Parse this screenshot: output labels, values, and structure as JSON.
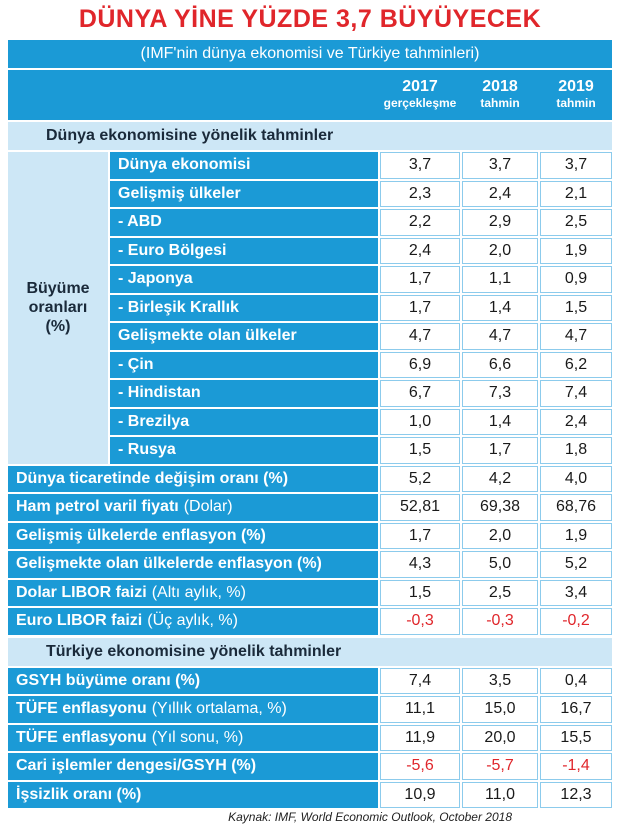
{
  "title": "DÜNYA YİNE YÜZDE 3,7 BÜYÜYECEK",
  "subtitle": "(IMF'nin dünya ekonomisi ve Türkiye tahminleri)",
  "columns": [
    {
      "year": "2017",
      "note": "gerçekleşme"
    },
    {
      "year": "2018",
      "note": "tahmin"
    },
    {
      "year": "2019",
      "note": "tahmin"
    }
  ],
  "sections": [
    {
      "heading": "Dünya ekonomisine yönelik tahminler",
      "group_label": [
        "Büyüme",
        "oranları",
        "(%)"
      ],
      "group_rows": [
        {
          "label": "Dünya ekonomisi",
          "values": [
            "3,7",
            "3,7",
            "3,7"
          ]
        },
        {
          "label": "Gelişmiş ülkeler",
          "values": [
            "2,3",
            "2,4",
            "2,1"
          ]
        },
        {
          "label": "- ABD",
          "values": [
            "2,2",
            "2,9",
            "2,5"
          ]
        },
        {
          "label": "- Euro Bölgesi",
          "values": [
            "2,4",
            "2,0",
            "1,9"
          ]
        },
        {
          "label": "- Japonya",
          "values": [
            "1,7",
            "1,1",
            "0,9"
          ]
        },
        {
          "label": "- Birleşik Krallık",
          "values": [
            "1,7",
            "1,4",
            "1,5"
          ]
        },
        {
          "label": "Gelişmekte olan ülkeler",
          "values": [
            "4,7",
            "4,7",
            "4,7"
          ]
        },
        {
          "label": "- Çin",
          "values": [
            "6,9",
            "6,6",
            "6,2"
          ]
        },
        {
          "label": "- Hindistan",
          "values": [
            "6,7",
            "7,3",
            "7,4"
          ]
        },
        {
          "label": "- Brezilya",
          "values": [
            "1,0",
            "1,4",
            "2,4"
          ]
        },
        {
          "label": "- Rusya",
          "values": [
            "1,5",
            "1,7",
            "1,8"
          ]
        }
      ],
      "rows": [
        {
          "label": "Dünya ticaretinde değişim oranı (%)",
          "values": [
            "5,2",
            "4,2",
            "4,0"
          ]
        },
        {
          "label": "Ham petrol varil fiyatı",
          "note": "(Dolar)",
          "values": [
            "52,81",
            "69,38",
            "68,76"
          ]
        },
        {
          "label": "Gelişmiş ülkelerde enflasyon (%)",
          "values": [
            "1,7",
            "2,0",
            "1,9"
          ]
        },
        {
          "label": "Gelişmekte olan ülkelerde enflasyon (%)",
          "values": [
            "4,3",
            "5,0",
            "5,2"
          ]
        },
        {
          "label": "Dolar LIBOR faizi",
          "note": "(Altı aylık, %)",
          "values": [
            "1,5",
            "2,5",
            "3,4"
          ]
        },
        {
          "label": "Euro LIBOR faizi",
          "note": "(Üç aylık, %)",
          "values": [
            "-0,3",
            "-0,3",
            "-0,2"
          ]
        }
      ]
    },
    {
      "heading": "Türkiye ekonomisine yönelik tahminler",
      "rows": [
        {
          "label": "GSYH büyüme oranı (%)",
          "values": [
            "7,4",
            "3,5",
            "0,4"
          ]
        },
        {
          "label": "TÜFE enflasyonu",
          "note": "(Yıllık ortalama, %)",
          "values": [
            "11,1",
            "15,0",
            "16,7"
          ]
        },
        {
          "label": "TÜFE enflasyonu",
          "note": "(Yıl sonu, %)",
          "values": [
            "11,9",
            "20,0",
            "15,5"
          ]
        },
        {
          "label": "Cari işlemler dengesi/GSYH (%)",
          "values": [
            "-5,6",
            "-5,7",
            "-1,4"
          ]
        },
        {
          "label": "İşsizlik oranı (%)",
          "values": [
            "10,9",
            "11,0",
            "12,3"
          ]
        }
      ]
    }
  ],
  "source": "Kaynak: IMF, World Economic Outlook, October 2018"
}
